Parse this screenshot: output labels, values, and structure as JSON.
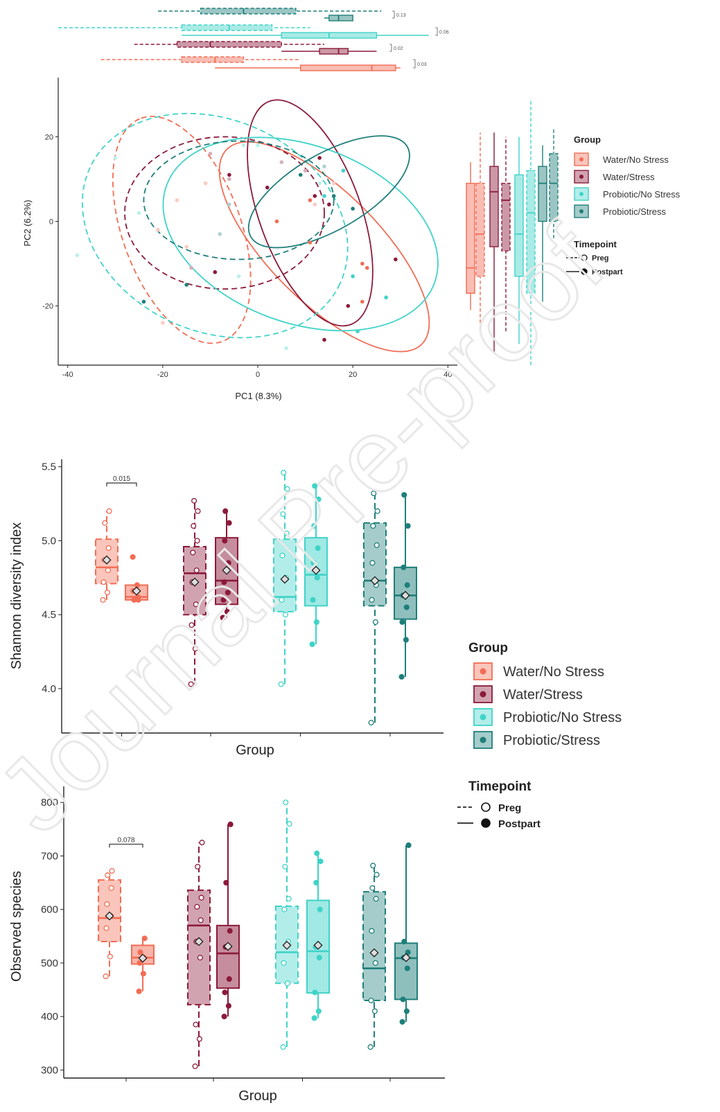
{
  "watermark": "Journal Pre-proof",
  "colors": {
    "Water/No Stress": "#f26d55",
    "Water/Stress": "#8b1a3a",
    "Probiotic/No Stress": "#40d3c8",
    "Probiotic/Stress": "#1e7f7a"
  },
  "legend_group": {
    "title": "Group",
    "items": [
      "Water/No Stress",
      "Water/Stress",
      "Probiotic/No Stress",
      "Probiotic/Stress"
    ]
  },
  "legend_timepoint": {
    "title": "Timepoint",
    "items": [
      "Preg",
      "Postpart"
    ]
  },
  "chart_data": [
    {
      "type": "scatter",
      "panel": "PCA",
      "xlabel": "PC1 (8.3%)",
      "ylabel": "PC2 (6.2%)",
      "xlim": [
        -42,
        42
      ],
      "ylim": [
        -34,
        34
      ],
      "xticks": [
        -40,
        -20,
        0,
        20,
        40
      ],
      "yticks": [
        -20,
        0,
        20
      ],
      "top_pvalues": [
        "0.13",
        "0.06",
        "0.02",
        "0.03"
      ],
      "ellipses": [
        {
          "group": "Water/No Stress",
          "timepoint": "Preg",
          "cx": -16,
          "cy": -2,
          "rx": 25,
          "ry": 14,
          "angle": 110
        },
        {
          "group": "Water/No Stress",
          "timepoint": "Postpart",
          "cx": 14,
          "cy": -6,
          "rx": 29,
          "ry": 13,
          "angle": -45
        },
        {
          "group": "Water/Stress",
          "timepoint": "Preg",
          "cx": -7,
          "cy": 2,
          "rx": 21,
          "ry": 18,
          "angle": 0
        },
        {
          "group": "Water/Stress",
          "timepoint": "Postpart",
          "cx": 11,
          "cy": 2,
          "rx": 25,
          "ry": 12,
          "angle": -70
        },
        {
          "group": "Probiotic/No Stress",
          "timepoint": "Preg",
          "cx": -9,
          "cy": -1,
          "rx": 29,
          "ry": 25,
          "angle": -25
        },
        {
          "group": "Probiotic/No Stress",
          "timepoint": "Postpart",
          "cx": 9,
          "cy": -3,
          "rx": 30,
          "ry": 21,
          "angle": -20
        },
        {
          "group": "Probiotic/Stress",
          "timepoint": "Preg",
          "cx": -4,
          "cy": 5,
          "rx": 20,
          "ry": 14,
          "angle": 0
        },
        {
          "group": "Probiotic/Stress",
          "timepoint": "Postpart",
          "cx": 15,
          "cy": 7,
          "rx": 19,
          "ry": 9,
          "angle": 30
        }
      ],
      "points": [
        {
          "x": -30,
          "y": 15,
          "g": "Probiotic/No Stress",
          "t": "Preg"
        },
        {
          "x": -38,
          "y": -8,
          "g": "Probiotic/No Stress",
          "t": "Preg"
        },
        {
          "x": -25,
          "y": 2,
          "g": "Probiotic/No Stress",
          "t": "Preg"
        },
        {
          "x": -10,
          "y": 16,
          "g": "Water/Stress",
          "t": "Preg"
        },
        {
          "x": -17,
          "y": 5,
          "g": "Water/No Stress",
          "t": "Preg"
        },
        {
          "x": -15,
          "y": -6,
          "g": "Water/No Stress",
          "t": "Preg"
        },
        {
          "x": -21,
          "y": -2,
          "g": "Water/No Stress",
          "t": "Preg"
        },
        {
          "x": -6,
          "y": 10,
          "g": "Water/Stress",
          "t": "Preg"
        },
        {
          "x": -11,
          "y": 9,
          "g": "Water/No Stress",
          "t": "Preg"
        },
        {
          "x": -3,
          "y": 18,
          "g": "Probiotic/No Stress",
          "t": "Preg"
        },
        {
          "x": 0,
          "y": 18,
          "g": "Probiotic/No Stress",
          "t": "Preg"
        },
        {
          "x": 5,
          "y": 14,
          "g": "Water/Stress",
          "t": "Preg"
        },
        {
          "x": -14,
          "y": -11,
          "g": "Water/Stress",
          "t": "Preg"
        },
        {
          "x": -20,
          "y": -24,
          "g": "Water/No Stress",
          "t": "Preg"
        },
        {
          "x": -4,
          "y": -13,
          "g": "Probiotic/No Stress",
          "t": "Preg"
        },
        {
          "x": 6,
          "y": -30,
          "g": "Probiotic/No Stress",
          "t": "Preg"
        },
        {
          "x": 10,
          "y": 12,
          "g": "Water/Stress",
          "t": "Preg"
        },
        {
          "x": 14,
          "y": 13,
          "g": "Probiotic/Stress",
          "t": "Preg"
        },
        {
          "x": -6,
          "y": 4,
          "g": "Probiotic/Stress",
          "t": "Preg"
        },
        {
          "x": 12,
          "y": 4,
          "g": "Water/No Stress",
          "t": "Preg"
        },
        {
          "x": 16,
          "y": 9,
          "g": "Water/No Stress",
          "t": "Preg"
        },
        {
          "x": -8,
          "y": -3,
          "g": "Probiotic/Stress",
          "t": "Preg"
        },
        {
          "x": 13,
          "y": 9,
          "g": "Probiotic/No Stress",
          "t": "Preg"
        },
        {
          "x": -24,
          "y": -19,
          "g": "Probiotic/Stress",
          "t": "Postpart"
        },
        {
          "x": -15,
          "y": -15,
          "g": "Probiotic/Stress",
          "t": "Postpart"
        },
        {
          "x": -9,
          "y": -12,
          "g": "Water/Stress",
          "t": "Postpart"
        },
        {
          "x": -6,
          "y": 11,
          "g": "Water/Stress",
          "t": "Postpart"
        },
        {
          "x": 2,
          "y": 8,
          "g": "Water/Stress",
          "t": "Postpart"
        },
        {
          "x": 4,
          "y": 0,
          "g": "Water/No Stress",
          "t": "Postpart"
        },
        {
          "x": 9,
          "y": 11,
          "g": "Probiotic/Stress",
          "t": "Postpart"
        },
        {
          "x": 11,
          "y": 5,
          "g": "Water/No Stress",
          "t": "Postpart"
        },
        {
          "x": 12,
          "y": 6,
          "g": "Water/Stress",
          "t": "Postpart"
        },
        {
          "x": 14,
          "y": 6,
          "g": "Probiotic/No Stress",
          "t": "Postpart"
        },
        {
          "x": 15,
          "y": 4,
          "g": "Water/Stress",
          "t": "Postpart"
        },
        {
          "x": 16,
          "y": 6,
          "g": "Probiotic/Stress",
          "t": "Postpart"
        },
        {
          "x": 13,
          "y": 15,
          "g": "Water/Stress",
          "t": "Postpart"
        },
        {
          "x": 18,
          "y": 12,
          "g": "Probiotic/No Stress",
          "t": "Postpart"
        },
        {
          "x": 20,
          "y": -13,
          "g": "Probiotic/No Stress",
          "t": "Postpart"
        },
        {
          "x": 19,
          "y": -20,
          "g": "Water/Stress",
          "t": "Postpart"
        },
        {
          "x": 22,
          "y": -10,
          "g": "Water/No Stress",
          "t": "Postpart"
        },
        {
          "x": 23,
          "y": -11,
          "g": "Water/No Stress",
          "t": "Postpart"
        },
        {
          "x": 22,
          "y": -19,
          "g": "Water/No Stress",
          "t": "Postpart"
        },
        {
          "x": 29,
          "y": -9,
          "g": "Water/Stress",
          "t": "Postpart"
        },
        {
          "x": 27,
          "y": -18,
          "g": "Probiotic/No Stress",
          "t": "Postpart"
        },
        {
          "x": 14,
          "y": -28,
          "g": "Water/Stress",
          "t": "Postpart"
        },
        {
          "x": 21,
          "y": -26,
          "g": "Probiotic/No Stress",
          "t": "Postpart"
        },
        {
          "x": 11,
          "y": -5,
          "g": "Water/No Stress",
          "t": "Postpart"
        },
        {
          "x": 20,
          "y": 3,
          "g": "Probiotic/Stress",
          "t": "Postpart"
        }
      ],
      "marginal_x": [
        {
          "group": "Probiotic/Stress",
          "timepoint": "Preg",
          "whisker": [
            -21,
            26
          ],
          "q1": -12,
          "median": -3,
          "q3": 8
        },
        {
          "group": "Probiotic/Stress",
          "timepoint": "Postpart",
          "whisker": [
            14,
            20
          ],
          "q1": 15,
          "median": 17,
          "q3": 20
        },
        {
          "group": "Probiotic/No Stress",
          "timepoint": "Preg",
          "whisker": [
            -42,
            11
          ],
          "q1": -16,
          "median": -6,
          "q3": 3
        },
        {
          "group": "Probiotic/No Stress",
          "timepoint": "Postpart",
          "whisker": [
            -16,
            36
          ],
          "q1": 5,
          "median": 15,
          "q3": 25
        },
        {
          "group": "Water/Stress",
          "timepoint": "Preg",
          "whisker": [
            -26,
            14
          ],
          "q1": -17,
          "median": -10,
          "q3": 5
        },
        {
          "group": "Water/Stress",
          "timepoint": "Postpart",
          "whisker": [
            5,
            25
          ],
          "q1": 13,
          "median": 17,
          "q3": 19
        },
        {
          "group": "Water/No Stress",
          "timepoint": "Preg",
          "whisker": [
            -33,
            9
          ],
          "q1": -16,
          "median": -9,
          "q3": -3
        },
        {
          "group": "Water/No Stress",
          "timepoint": "Postpart",
          "whisker": [
            -9,
            30
          ],
          "q1": 9,
          "median": 24,
          "q3": 29
        }
      ],
      "marginal_y": [
        {
          "group": "Water/No Stress",
          "timepoint": "Postpart",
          "whisker": [
            -21,
            14
          ],
          "q1": -17,
          "median": -11,
          "q3": 9
        },
        {
          "group": "Water/No Stress",
          "timepoint": "Preg",
          "whisker": [
            -24,
            21
          ],
          "q1": -13,
          "median": -3,
          "q3": 9
        },
        {
          "group": "Water/Stress",
          "timepoint": "Postpart",
          "whisker": [
            -31,
            21
          ],
          "q1": -6,
          "median": 7,
          "q3": 13
        },
        {
          "group": "Water/Stress",
          "timepoint": "Preg",
          "whisker": [
            -26,
            20
          ],
          "q1": -7,
          "median": 5,
          "q3": 9
        },
        {
          "group": "Probiotic/No Stress",
          "timepoint": "Postpart",
          "whisker": [
            -29,
            20
          ],
          "q1": -13,
          "median": -3,
          "q3": 11
        },
        {
          "group": "Probiotic/No Stress",
          "timepoint": "Preg",
          "whisker": [
            -34,
            29
          ],
          "q1": -17,
          "median": 2,
          "q3": 12
        },
        {
          "group": "Probiotic/Stress",
          "timepoint": "Postpart",
          "whisker": [
            -19,
            18
          ],
          "q1": 0,
          "median": 9,
          "q3": 13
        },
        {
          "group": "Probiotic/Stress",
          "timepoint": "Preg",
          "whisker": [
            -4,
            22
          ],
          "q1": 0,
          "median": 9,
          "q3": 16
        }
      ]
    },
    {
      "type": "box",
      "panel": "Shannon",
      "xlabel": "Group",
      "ylabel": "Shannon diversity index",
      "ylim": [
        3.7,
        5.55
      ],
      "yticks": [
        4.0,
        4.5,
        5.0,
        5.5
      ],
      "annotation": {
        "label": "0.015",
        "between": [
          0,
          1
        ],
        "y": 5.39
      },
      "boxes": [
        {
          "group": "Water/No Stress",
          "timepoint": "Preg",
          "whisker": [
            4.6,
            5.2
          ],
          "q1": 4.71,
          "median": 4.82,
          "q3": 5.01,
          "mean": 4.87,
          "points": [
            4.6,
            4.65,
            4.72,
            4.8,
            4.87,
            4.95,
            5.12,
            5.2
          ]
        },
        {
          "group": "Water/No Stress",
          "timepoint": "Postpart",
          "whisker": [
            4.6,
            4.7
          ],
          "q1": 4.6,
          "median": 4.62,
          "q3": 4.7,
          "mean": 4.66,
          "points": [
            4.89,
            4.7,
            4.66,
            4.62,
            4.6,
            4.6
          ]
        },
        {
          "group": "Water/Stress",
          "timepoint": "Preg",
          "whisker": [
            4.03,
            5.27
          ],
          "q1": 4.5,
          "median": 4.78,
          "q3": 4.96,
          "mean": 4.72,
          "points": [
            4.03,
            4.27,
            4.43,
            4.57,
            4.72,
            4.8,
            4.92,
            5.0,
            5.1,
            5.2,
            5.27
          ]
        },
        {
          "group": "Water/Stress",
          "timepoint": "Postpart",
          "whisker": [
            4.48,
            5.2
          ],
          "q1": 4.57,
          "median": 4.73,
          "q3": 5.02,
          "mean": 4.8,
          "points": [
            4.48,
            4.52,
            4.6,
            4.65,
            4.72,
            4.85,
            5.0,
            5.12,
            5.2
          ]
        },
        {
          "group": "Probiotic/No Stress",
          "timepoint": "Preg",
          "whisker": [
            4.03,
            5.46
          ],
          "q1": 4.52,
          "median": 4.62,
          "q3": 5.01,
          "mean": 4.74,
          "points": [
            4.03,
            4.5,
            4.6,
            4.75,
            4.9,
            5.05,
            5.18,
            5.35,
            5.46
          ]
        },
        {
          "group": "Probiotic/No Stress",
          "timepoint": "Postpart",
          "whisker": [
            4.3,
            5.37
          ],
          "q1": 4.56,
          "median": 4.77,
          "q3": 5.02,
          "mean": 4.8,
          "points": [
            4.3,
            4.45,
            4.6,
            4.75,
            4.85,
            4.95,
            5.1,
            5.28,
            5.37
          ]
        },
        {
          "group": "Probiotic/Stress",
          "timepoint": "Preg",
          "whisker": [
            3.77,
            5.32
          ],
          "q1": 4.56,
          "median": 4.73,
          "q3": 5.12,
          "mean": 4.73,
          "points": [
            3.77,
            4.45,
            4.6,
            4.7,
            4.85,
            4.97,
            5.1,
            5.2,
            5.32
          ]
        },
        {
          "group": "Probiotic/Stress",
          "timepoint": "Postpart",
          "whisker": [
            4.08,
            5.31
          ],
          "q1": 4.47,
          "median": 4.63,
          "q3": 4.82,
          "mean": 4.63,
          "points": [
            4.08,
            4.33,
            4.45,
            4.55,
            4.63,
            4.7,
            4.82,
            5.1,
            5.31
          ]
        }
      ]
    },
    {
      "type": "box",
      "panel": "Observed",
      "xlabel": "Group",
      "ylabel": "Observed species",
      "ylim": [
        285,
        830
      ],
      "yticks": [
        300,
        400,
        500,
        600,
        700,
        800
      ],
      "annotation": {
        "label": "0.078",
        "between": [
          0,
          1
        ],
        "y": 722
      },
      "boxes": [
        {
          "group": "Water/No Stress",
          "timepoint": "Preg",
          "whisker": [
            475,
            672
          ],
          "q1": 540,
          "median": 584,
          "q3": 655,
          "mean": 588,
          "points": [
            475,
            512,
            565,
            588,
            610,
            640,
            664,
            672
          ]
        },
        {
          "group": "Water/No Stress",
          "timepoint": "Postpart",
          "whisker": [
            447,
            546
          ],
          "q1": 498,
          "median": 510,
          "q3": 533,
          "mean": 509,
          "points": [
            447,
            480,
            500,
            510,
            520,
            546
          ]
        },
        {
          "group": "Water/Stress",
          "timepoint": "Preg",
          "whisker": [
            307,
            725
          ],
          "q1": 422,
          "median": 570,
          "q3": 636,
          "mean": 540,
          "points": [
            307,
            358,
            385,
            510,
            540,
            580,
            605,
            622,
            680,
            725
          ]
        },
        {
          "group": "Water/Stress",
          "timepoint": "Postpart",
          "whisker": [
            400,
            759
          ],
          "q1": 453,
          "median": 518,
          "q3": 570,
          "mean": 531,
          "points": [
            400,
            420,
            445,
            470,
            530,
            560,
            650,
            759
          ]
        },
        {
          "group": "Probiotic/No Stress",
          "timepoint": "Preg",
          "whisker": [
            343,
            800
          ],
          "q1": 462,
          "median": 520,
          "q3": 606,
          "mean": 533,
          "points": [
            343,
            462,
            500,
            540,
            600,
            620,
            680,
            760,
            800
          ]
        },
        {
          "group": "Probiotic/No Stress",
          "timepoint": "Postpart",
          "whisker": [
            397,
            705
          ],
          "q1": 444,
          "median": 522,
          "q3": 617,
          "mean": 533,
          "points": [
            397,
            410,
            445,
            510,
            530,
            600,
            650,
            690,
            705
          ]
        },
        {
          "group": "Probiotic/Stress",
          "timepoint": "Preg",
          "whisker": [
            343,
            682
          ],
          "q1": 430,
          "median": 490,
          "q3": 633,
          "mean": 519,
          "points": [
            343,
            410,
            430,
            500,
            560,
            620,
            640,
            665,
            682
          ]
        },
        {
          "group": "Probiotic/Stress",
          "timepoint": "Postpart",
          "whisker": [
            390,
            720
          ],
          "q1": 432,
          "median": 509,
          "q3": 537,
          "mean": 510,
          "points": [
            390,
            410,
            432,
            490,
            510,
            520,
            540,
            720
          ]
        }
      ]
    }
  ]
}
